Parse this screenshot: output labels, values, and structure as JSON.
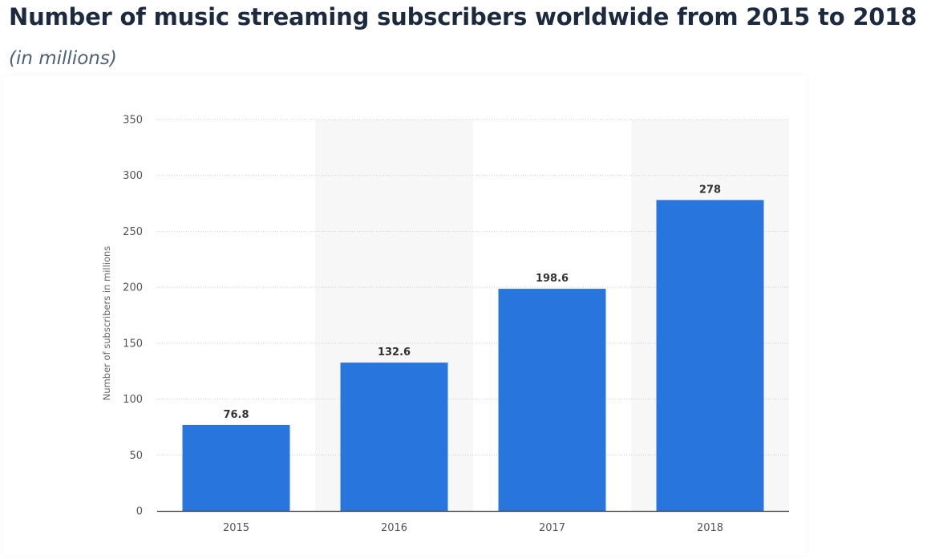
{
  "header": {
    "title": "Number of music streaming subscribers worldwide from 2015 to 2018",
    "subtitle": "(in millions)"
  },
  "colors": {
    "bar": "#2876dd",
    "band": "#f7f7f7",
    "grid": "#c8c8c8",
    "axis": "#333333",
    "tick_text": "#555555",
    "value_text": "#333333",
    "title": "#1b2a3e",
    "subtitle": "#4e6178"
  },
  "chart_data": {
    "type": "bar",
    "title": "Number of music streaming subscribers worldwide from 2015 to 2018",
    "subtitle": "(in millions)",
    "xlabel": "",
    "ylabel": "Number of subscribers in millions",
    "categories": [
      "2015",
      "2016",
      "2017",
      "2018"
    ],
    "values": [
      76.8,
      132.6,
      198.6,
      278
    ],
    "value_labels": [
      "76.8",
      "132.6",
      "198.6",
      "278"
    ],
    "ylim": [
      0,
      350
    ],
    "yticks": [
      0,
      50,
      100,
      150,
      200,
      250,
      300,
      350
    ],
    "grid": true,
    "alternating_bands": true,
    "legend": "none"
  }
}
